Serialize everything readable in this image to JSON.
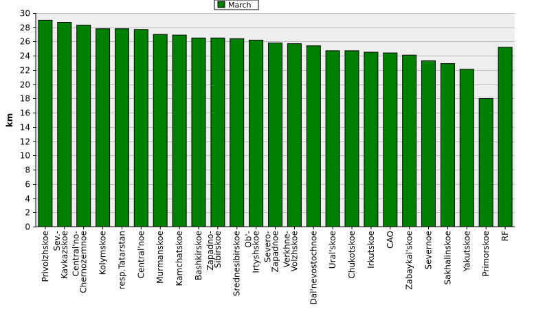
{
  "chart_data": {
    "type": "bar",
    "title": "",
    "xlabel": "",
    "ylabel": "km",
    "ylim": [
      0,
      30
    ],
    "ytick_step": 2,
    "grid": true,
    "legend": "top-center",
    "categories": [
      "Privolzhskoe",
      "Sev.-Kavkazskoe",
      "Central'no-Chernozemnoe",
      "Kolymskoe",
      "resp.Tatarstan",
      "Central'noe",
      "Murmanskoe",
      "Kamchatskoe",
      "Bashkirskoe",
      "Zapadno-Sibirskoe",
      "Srednesibirskoe",
      "Ob'-Irtyshskoe",
      "Severo-Zapadnoe",
      "Verkhne-Volzhskoe",
      "Dal'nevostochnoe",
      "Ural'skoe",
      "Chukotskoe",
      "Irkutskoe",
      "CAO",
      "Zabaykal'skoe",
      "Severnoe",
      "Sakhalinskoe",
      "Yakutskoe",
      "Primorskoe",
      "RF"
    ],
    "category_lines": [
      [
        "Privolzhskoe"
      ],
      [
        "Sev.-",
        "Kavkazskoe"
      ],
      [
        "Central'no-",
        "Chernozemnoe"
      ],
      [
        "Kolymskoe"
      ],
      [
        "resp.Tatarstan"
      ],
      [
        "Central'noe"
      ],
      [
        "Murmanskoe"
      ],
      [
        "Kamchatskoe"
      ],
      [
        "Bashkirskoe"
      ],
      [
        "Zapadno-",
        "Sibirskoe"
      ],
      [
        "Srednesibirskoe"
      ],
      [
        "Ob'-",
        "Irtyshskoe"
      ],
      [
        "Severo-",
        "Zapadnoe"
      ],
      [
        "Verkhne-",
        "Volzhskoe"
      ],
      [
        "Dal'nevostochnoe"
      ],
      [
        "Ural'skoe"
      ],
      [
        "Chukotskoe"
      ],
      [
        "Irkutskoe"
      ],
      [
        "CAO"
      ],
      [
        "Zabaykal'skoe"
      ],
      [
        "Severnoe"
      ],
      [
        "Sakhalinskoe"
      ],
      [
        "Yakutskoe"
      ],
      [
        "Primorskoe"
      ],
      [
        "RF"
      ]
    ],
    "series": [
      {
        "name": "March",
        "color": "#008000",
        "values": [
          29.0,
          28.7,
          28.3,
          27.8,
          27.8,
          27.7,
          27.0,
          26.9,
          26.5,
          26.5,
          26.4,
          26.2,
          25.8,
          25.7,
          25.4,
          24.7,
          24.7,
          24.5,
          24.4,
          24.1,
          23.3,
          22.9,
          22.1,
          18.0,
          25.2
        ]
      }
    ],
    "colors": {
      "plot_bg": "#eeeeee",
      "grid": "#bdbdbd",
      "bar_edge": "#000000"
    }
  }
}
